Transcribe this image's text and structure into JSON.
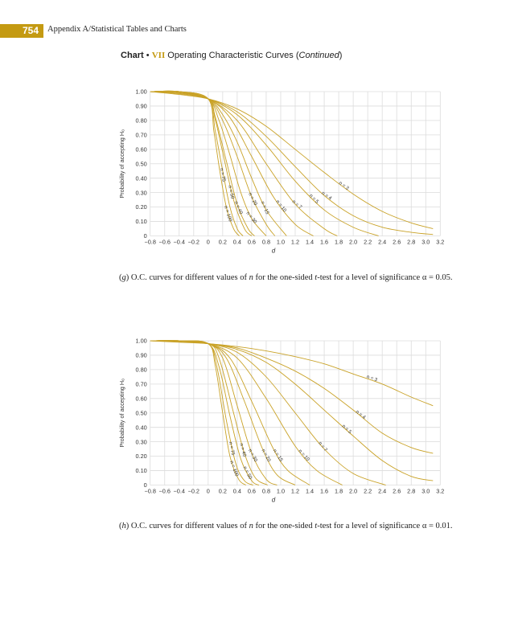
{
  "header": {
    "page_number": "754",
    "running_head": "Appendix A/Statistical Tables and Charts"
  },
  "title": {
    "prefix": "Chart",
    "bullet": "•",
    "roman": "VII",
    "text": "Operating Characteristic Curves (",
    "italic": "Continued",
    "close": ")"
  },
  "colors": {
    "curve": "#c9a227",
    "grid": "#dcdcdc",
    "accent": "#c49a12"
  },
  "chart_data": [
    {
      "type": "line",
      "xlabel": "d",
      "ylabel": "Probability of accepting H₀",
      "xlim": [
        -0.8,
        3.2
      ],
      "ylim": [
        0,
        1.0
      ],
      "grid": true,
      "x_ticks": [
        "−0.8",
        "−0.6",
        "−0.4",
        "−0.2",
        "0",
        "0.2",
        "0.4",
        "0.6",
        "0.8",
        "1.0",
        "1.2",
        "1.4",
        "1.6",
        "1.8",
        "2.0",
        "2.2",
        "2.4",
        "2.6",
        "2.8",
        "3.0",
        "3.2"
      ],
      "y_ticks": [
        "0",
        "0.10",
        "0.20",
        "0.30",
        "0.40",
        "0.50",
        "0.60",
        "0.70",
        "0.80",
        "0.90",
        "1.00"
      ],
      "series": [
        {
          "name": "n = 3",
          "x": [
            -0.8,
            -0.4,
            0,
            0.4,
            0.8,
            1.2,
            1.6,
            2.0,
            2.4,
            2.8,
            3.1
          ],
          "y": [
            1.0,
            0.98,
            0.95,
            0.88,
            0.76,
            0.6,
            0.44,
            0.29,
            0.17,
            0.09,
            0.05
          ]
        },
        {
          "name": "n = 4",
          "x": [
            -0.8,
            -0.4,
            0,
            0.4,
            0.8,
            1.2,
            1.6,
            2.0,
            2.4,
            2.8,
            3.1
          ],
          "y": [
            1.0,
            0.985,
            0.95,
            0.86,
            0.69,
            0.48,
            0.28,
            0.14,
            0.06,
            0.025,
            0.01
          ]
        },
        {
          "name": "n = 5",
          "x": [
            -0.8,
            -0.4,
            0,
            0.4,
            0.8,
            1.2,
            1.6,
            2.0,
            2.35
          ],
          "y": [
            1.0,
            0.99,
            0.95,
            0.84,
            0.63,
            0.38,
            0.18,
            0.06,
            0
          ]
        },
        {
          "name": "n = 7",
          "x": [
            -0.8,
            -0.4,
            0,
            0.4,
            0.8,
            1.2,
            1.6,
            1.78
          ],
          "y": [
            1.0,
            0.99,
            0.95,
            0.8,
            0.5,
            0.22,
            0.05,
            0
          ]
        },
        {
          "name": "n = 10",
          "x": [
            -0.8,
            -0.4,
            0,
            0.3,
            0.6,
            0.9,
            1.2,
            1.45
          ],
          "y": [
            1.0,
            0.995,
            0.95,
            0.82,
            0.55,
            0.27,
            0.08,
            0
          ]
        },
        {
          "name": "n = 15",
          "x": [
            -0.8,
            -0.4,
            0,
            0.2,
            0.4,
            0.6,
            0.8,
            1.08
          ],
          "y": [
            1.0,
            0.998,
            0.95,
            0.84,
            0.65,
            0.4,
            0.18,
            0
          ]
        },
        {
          "name": "n = 20",
          "x": [
            -0.8,
            -0.4,
            0,
            0.2,
            0.4,
            0.6,
            0.8,
            0.92
          ],
          "y": [
            1.0,
            1.0,
            0.95,
            0.8,
            0.55,
            0.27,
            0.08,
            0
          ]
        },
        {
          "name": "n = 30",
          "x": [
            -0.8,
            -0.4,
            0,
            0.15,
            0.3,
            0.45,
            0.6,
            0.8
          ],
          "y": [
            1.0,
            1.0,
            0.95,
            0.8,
            0.56,
            0.3,
            0.12,
            0
          ]
        },
        {
          "name": "n = 40",
          "x": [
            -0.8,
            -0.4,
            0,
            0.1,
            0.25,
            0.4,
            0.55,
            0.64
          ],
          "y": [
            1.0,
            1.0,
            0.95,
            0.82,
            0.52,
            0.22,
            0.05,
            0
          ]
        },
        {
          "name": "n = 50",
          "x": [
            -0.8,
            -0.4,
            0,
            0.1,
            0.2,
            0.35,
            0.5,
            0.6
          ],
          "y": [
            1.0,
            1.0,
            0.95,
            0.8,
            0.58,
            0.25,
            0.05,
            0
          ]
        },
        {
          "name": "n = 75",
          "x": [
            -0.8,
            -0.4,
            0,
            0.1,
            0.2,
            0.3,
            0.4,
            0.48
          ],
          "y": [
            1.0,
            1.0,
            0.95,
            0.72,
            0.45,
            0.2,
            0.05,
            0
          ]
        },
        {
          "name": "n = 100",
          "x": [
            -0.8,
            -0.4,
            0,
            0.08,
            0.16,
            0.25,
            0.35,
            0.43
          ],
          "y": [
            1.0,
            1.0,
            0.95,
            0.72,
            0.45,
            0.2,
            0.05,
            0
          ]
        }
      ]
    },
    {
      "type": "line",
      "xlabel": "d",
      "ylabel": "Probability of accepting H₀",
      "xlim": [
        -0.8,
        3.2
      ],
      "ylim": [
        0,
        1.0
      ],
      "grid": true,
      "x_ticks": [
        "−0.8",
        "−0.6",
        "−0.4",
        "−0.2",
        "0",
        "0.2",
        "0.4",
        "0.6",
        "0.8",
        "1.0",
        "1.2",
        "1.4",
        "1.6",
        "1.8",
        "2.0",
        "2.2",
        "2.4",
        "2.6",
        "2.8",
        "3.0",
        "3.2"
      ],
      "y_ticks": [
        "0",
        "0.10",
        "0.20",
        "0.30",
        "0.40",
        "0.50",
        "0.60",
        "0.70",
        "0.80",
        "0.90",
        "1.00"
      ],
      "series": [
        {
          "name": "n = 3",
          "x": [
            -0.8,
            -0.4,
            0,
            0.4,
            0.8,
            1.2,
            1.6,
            2.0,
            2.4,
            2.8,
            3.1
          ],
          "y": [
            1.0,
            0.99,
            0.98,
            0.96,
            0.93,
            0.89,
            0.84,
            0.77,
            0.7,
            0.61,
            0.55
          ]
        },
        {
          "name": "n = 4",
          "x": [
            -0.8,
            -0.4,
            0,
            0.4,
            0.8,
            1.2,
            1.6,
            2.0,
            2.4,
            2.8,
            3.1
          ],
          "y": [
            1.0,
            0.995,
            0.98,
            0.95,
            0.88,
            0.79,
            0.67,
            0.52,
            0.36,
            0.26,
            0.22
          ]
        },
        {
          "name": "n = 5",
          "x": [
            -0.8,
            -0.4,
            0,
            0.4,
            0.8,
            1.2,
            1.6,
            2.0,
            2.4,
            2.8,
            3.1
          ],
          "y": [
            1.0,
            0.995,
            0.98,
            0.94,
            0.85,
            0.7,
            0.52,
            0.34,
            0.17,
            0.06,
            0.03
          ]
        },
        {
          "name": "n = 7",
          "x": [
            -0.8,
            -0.4,
            0,
            0.4,
            0.8,
            1.2,
            1.6,
            2.0,
            2.45
          ],
          "y": [
            1.0,
            0.997,
            0.98,
            0.92,
            0.75,
            0.5,
            0.25,
            0.08,
            0
          ]
        },
        {
          "name": "n = 10",
          "x": [
            -0.8,
            -0.4,
            0,
            0.4,
            0.8,
            1.2,
            1.5,
            1.85
          ],
          "y": [
            1.0,
            0.998,
            0.98,
            0.88,
            0.6,
            0.27,
            0.1,
            0
          ]
        },
        {
          "name": "n = 15",
          "x": [
            -0.8,
            -0.4,
            0,
            0.3,
            0.6,
            0.9,
            1.1,
            1.4
          ],
          "y": [
            1.0,
            1.0,
            0.98,
            0.88,
            0.58,
            0.25,
            0.1,
            0
          ]
        },
        {
          "name": "n = 20",
          "x": [
            -0.8,
            -0.4,
            0,
            0.25,
            0.5,
            0.75,
            0.95,
            1.2
          ],
          "y": [
            1.0,
            1.0,
            0.98,
            0.88,
            0.58,
            0.25,
            0.07,
            0
          ]
        },
        {
          "name": "n = 30",
          "x": [
            -0.8,
            -0.4,
            0,
            0.2,
            0.4,
            0.6,
            0.8,
            0.95
          ],
          "y": [
            1.0,
            1.0,
            0.98,
            0.88,
            0.55,
            0.22,
            0.04,
            0
          ]
        },
        {
          "name": "n = 40",
          "x": [
            -0.8,
            -0.4,
            0,
            0.15,
            0.35,
            0.5,
            0.65,
            0.82
          ],
          "y": [
            1.0,
            1.0,
            0.98,
            0.88,
            0.5,
            0.22,
            0.05,
            0
          ]
        },
        {
          "name": "n = 50",
          "x": [
            -0.8,
            -0.4,
            0,
            0.15,
            0.3,
            0.45,
            0.6,
            0.7
          ],
          "y": [
            1.0,
            1.0,
            0.98,
            0.82,
            0.48,
            0.18,
            0.03,
            0
          ]
        },
        {
          "name": "n = 75",
          "x": [
            -0.8,
            -0.4,
            0,
            0.12,
            0.25,
            0.38,
            0.5,
            0.62
          ],
          "y": [
            1.0,
            1.0,
            0.98,
            0.82,
            0.45,
            0.15,
            0.03,
            0
          ]
        },
        {
          "name": "n = 100",
          "x": [
            -0.8,
            -0.4,
            0,
            0.1,
            0.2,
            0.3,
            0.42,
            0.52
          ],
          "y": [
            1.0,
            1.0,
            0.98,
            0.82,
            0.5,
            0.2,
            0.04,
            0
          ]
        }
      ]
    }
  ],
  "captions": [
    {
      "letter": "g",
      "p1": "O.C. curves for different values of ",
      "n": "n",
      "p2": " for the one-sided ",
      "t": "t",
      "p3": "-test for a level of significance α = 0.05."
    },
    {
      "letter": "h",
      "p1": "O.C. curves for different values of ",
      "n": "n",
      "p2": " for the one-sided ",
      "t": "t",
      "p3": "-test for a level of significance α = 0.01."
    }
  ]
}
